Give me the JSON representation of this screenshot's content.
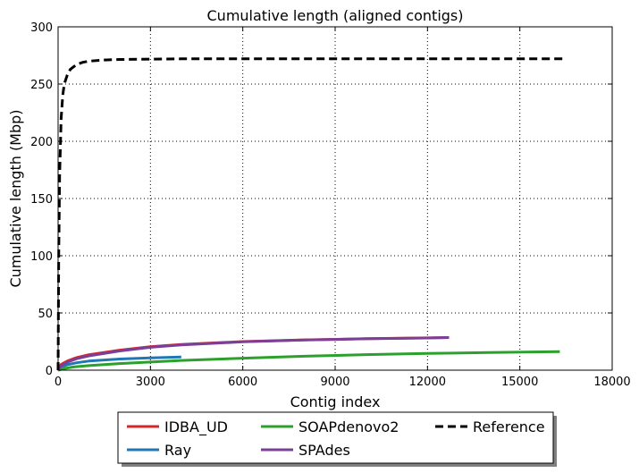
{
  "chart_data": {
    "type": "line",
    "title": "Cumulative length (aligned contigs)",
    "xlabel": "Contig index",
    "ylabel": "Cumulative length (Mbp)",
    "xlim": [
      0,
      18000
    ],
    "ylim": [
      0,
      300
    ],
    "xticks": [
      0,
      3000,
      6000,
      9000,
      12000,
      15000,
      18000
    ],
    "yticks": [
      0,
      50,
      100,
      150,
      200,
      250,
      300
    ],
    "grid": true,
    "legend_position": "bottom",
    "series": [
      {
        "name": "IDBA_UD",
        "color": "#d62728",
        "dash": "solid",
        "x": [
          0,
          100,
          300,
          600,
          1000,
          2000,
          3000,
          4000,
          6000,
          8000,
          10000,
          12000,
          12700
        ],
        "y": [
          0,
          5,
          8,
          11,
          13.5,
          17.5,
          20.5,
          22.5,
          25,
          26.5,
          27.5,
          28.2,
          28.5
        ]
      },
      {
        "name": "Ray",
        "color": "#1f77b4",
        "dash": "solid",
        "x": [
          0,
          100,
          300,
          600,
          1000,
          2000,
          3000,
          4000
        ],
        "y": [
          0,
          3,
          4.8,
          6.5,
          8,
          9.8,
          10.8,
          11.5
        ]
      },
      {
        "name": "SOAPdenovo2",
        "color": "#2ca02c",
        "dash": "solid",
        "x": [
          0,
          200,
          500,
          1000,
          2000,
          4000,
          6000,
          8000,
          10000,
          12000,
          14000,
          16300
        ],
        "y": [
          0,
          1.5,
          2.8,
          4,
          5.8,
          8.5,
          10.5,
          12.2,
          13.6,
          14.6,
          15.4,
          16.2
        ]
      },
      {
        "name": "SPAdes",
        "color": "#7b3f98",
        "dash": "solid",
        "x": [
          0,
          100,
          300,
          600,
          1000,
          2000,
          3000,
          4000,
          6000,
          8000,
          10000,
          12000,
          12700
        ],
        "y": [
          0,
          4,
          7,
          10,
          12.5,
          16.8,
          20,
          22,
          24.8,
          26.3,
          27.4,
          28.1,
          28.5
        ]
      },
      {
        "name": "Reference",
        "color": "#000000",
        "dash": "dashed",
        "x": [
          0,
          20,
          50,
          100,
          150,
          200,
          300,
          400,
          600,
          800,
          1000,
          1500,
          2000,
          4000,
          8000,
          12000,
          16400
        ],
        "y": [
          0,
          100,
          170,
          220,
          240,
          250,
          258,
          263,
          267,
          269,
          270,
          271,
          271.5,
          272,
          272,
          272,
          272
        ]
      }
    ],
    "legend": {
      "columns": [
        [
          "IDBA_UD",
          "Ray"
        ],
        [
          "SOAPdenovo2",
          "SPAdes"
        ],
        [
          "Reference"
        ]
      ]
    }
  }
}
